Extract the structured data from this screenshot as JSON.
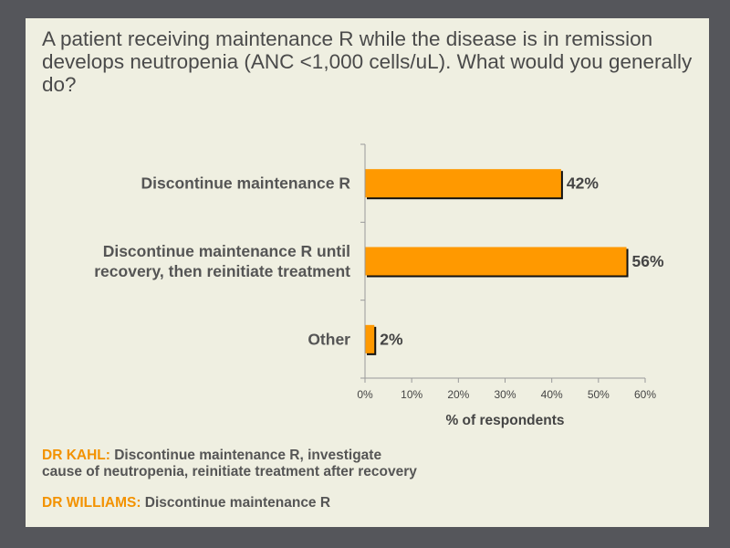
{
  "question": "A patient receiving maintenance R while the disease is in remission develops neutropenia (ANC <1,000 cells/uL). What would you generally do?",
  "chart_data": {
    "type": "bar",
    "orientation": "horizontal",
    "categories": [
      [
        "Discontinue maintenance R"
      ],
      [
        "Discontinue maintenance R until",
        "recovery, then reinitiate treatment"
      ],
      [
        "Other"
      ]
    ],
    "values": [
      42,
      56,
      2
    ],
    "value_labels": [
      "42%",
      "56%",
      "2%"
    ],
    "xlim": [
      0,
      60
    ],
    "xticks": [
      0,
      10,
      20,
      30,
      40,
      50,
      60
    ],
    "xtick_labels": [
      "0%",
      "10%",
      "20%",
      "30%",
      "40%",
      "50%",
      "60%"
    ],
    "xlabel": "% of respondents",
    "bar_color": "#ff9900",
    "grid": false
  },
  "notes": [
    {
      "speaker": "DR KAHL:",
      "text": " Discontinue maintenance R, investigate",
      "text2": "cause of neutropenia, reinitiate treatment after recovery"
    },
    {
      "speaker": "DR WILLIAMS:",
      "text": " Discontinue maintenance R"
    }
  ]
}
